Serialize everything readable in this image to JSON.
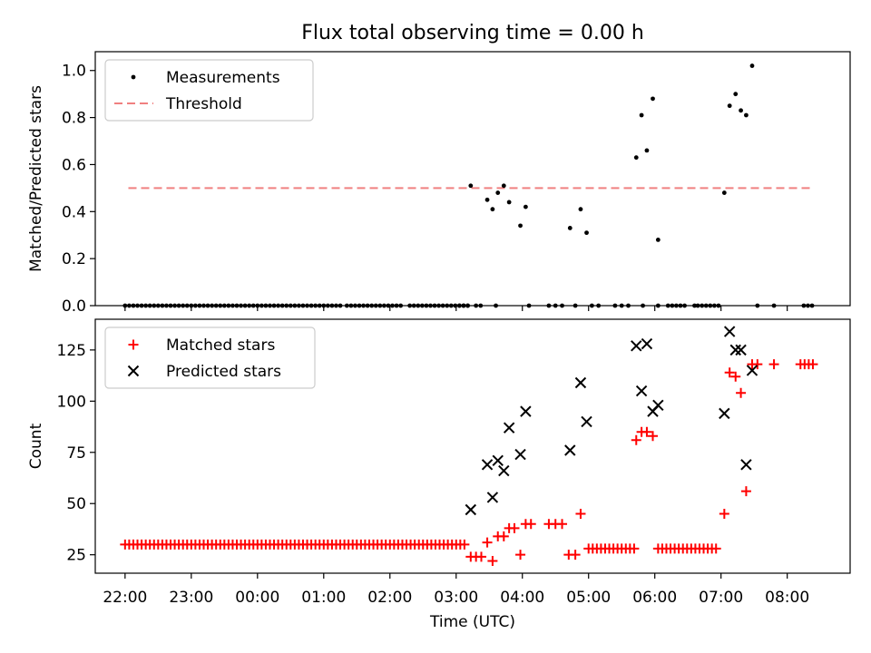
{
  "chart_data": {
    "title": "Flux total observing time = 0.00 h",
    "x_axis": {
      "label": "Time (UTC)",
      "domain_hours": [
        21.55,
        32.95
      ],
      "ticks": [
        {
          "h": 22,
          "label": "22:00"
        },
        {
          "h": 23,
          "label": "23:00"
        },
        {
          "h": 24,
          "label": "00:00"
        },
        {
          "h": 25,
          "label": "01:00"
        },
        {
          "h": 26,
          "label": "02:00"
        },
        {
          "h": 27,
          "label": "03:00"
        },
        {
          "h": 28,
          "label": "04:00"
        },
        {
          "h": 29,
          "label": "05:00"
        },
        {
          "h": 30,
          "label": "06:00"
        },
        {
          "h": 31,
          "label": "07:00"
        },
        {
          "h": 32,
          "label": "08:00"
        }
      ]
    },
    "panels": [
      {
        "type": "scatter",
        "ylabel": "Matched/Predicted stars",
        "ylim": [
          0,
          1.08
        ],
        "yticks": [
          {
            "v": 0.0,
            "label": "0.0"
          },
          {
            "v": 0.2,
            "label": "0.2"
          },
          {
            "v": 0.4,
            "label": "0.4"
          },
          {
            "v": 0.6,
            "label": "0.6"
          },
          {
            "v": 0.8,
            "label": "0.8"
          },
          {
            "v": 1.0,
            "label": "1.0"
          }
        ],
        "legend": {
          "position": "upper-left",
          "entries": [
            "Measurements",
            "Threshold"
          ]
        },
        "threshold": {
          "name": "Threshold",
          "value": 0.5,
          "x_range": [
            22.05,
            32.4
          ],
          "color": "#f08080"
        },
        "zero_runs": [
          {
            "start": 22.0,
            "end": 25.25,
            "step": 0.0625
          },
          {
            "start": 25.35,
            "end": 26.2,
            "step": 0.0625
          },
          {
            "start": 26.3,
            "end": 27.2,
            "step": 0.0625
          },
          {
            "start": 27.05,
            "end": 27.2,
            "step": 0.0625
          },
          {
            "start": 30.2,
            "end": 30.5,
            "step": 0.0625
          },
          {
            "start": 30.65,
            "end": 31.0,
            "step": 0.0625
          },
          {
            "start": 32.25,
            "end": 32.4,
            "step": 0.0625
          }
        ],
        "zeros_extra": [
          27.3,
          27.37,
          27.6,
          28.1,
          28.4,
          28.5,
          28.6,
          28.8,
          29.05,
          29.15,
          29.4,
          29.5,
          29.6,
          29.82,
          30.05,
          30.6,
          31.55,
          31.8
        ],
        "points": [
          {
            "x": 27.22,
            "y": 0.51
          },
          {
            "x": 27.47,
            "y": 0.45
          },
          {
            "x": 27.55,
            "y": 0.41
          },
          {
            "x": 27.63,
            "y": 0.48
          },
          {
            "x": 27.72,
            "y": 0.51
          },
          {
            "x": 27.8,
            "y": 0.44
          },
          {
            "x": 27.97,
            "y": 0.34
          },
          {
            "x": 28.05,
            "y": 0.42
          },
          {
            "x": 28.72,
            "y": 0.33
          },
          {
            "x": 28.88,
            "y": 0.41
          },
          {
            "x": 28.97,
            "y": 0.31
          },
          {
            "x": 29.72,
            "y": 0.63
          },
          {
            "x": 29.8,
            "y": 0.81
          },
          {
            "x": 29.88,
            "y": 0.66
          },
          {
            "x": 29.97,
            "y": 0.88
          },
          {
            "x": 30.05,
            "y": 0.28
          },
          {
            "x": 31.05,
            "y": 0.48
          },
          {
            "x": 31.13,
            "y": 0.85
          },
          {
            "x": 31.22,
            "y": 0.9
          },
          {
            "x": 31.3,
            "y": 0.83
          },
          {
            "x": 31.38,
            "y": 0.81
          },
          {
            "x": 31.47,
            "y": 1.02
          }
        ]
      },
      {
        "type": "scatter",
        "ylabel": "Count",
        "ylim": [
          16,
          140
        ],
        "yticks": [
          {
            "v": 25,
            "label": "25"
          },
          {
            "v": 50,
            "label": "50"
          },
          {
            "v": 75,
            "label": "75"
          },
          {
            "v": 100,
            "label": "100"
          },
          {
            "v": 125,
            "label": "125"
          }
        ],
        "legend": {
          "position": "upper-left",
          "entries": [
            "Matched stars",
            "Predicted stars"
          ]
        },
        "series": [
          {
            "name": "Matched stars",
            "marker": "+",
            "color": "#ff0000",
            "runs": [
              {
                "start": 22.0,
                "end": 27.15,
                "step": 0.0625,
                "y": 30
              },
              {
                "start": 29.0,
                "end": 29.7,
                "step": 0.0625,
                "y": 28
              },
              {
                "start": 30.05,
                "end": 30.95,
                "step": 0.0625,
                "y": 28
              },
              {
                "start": 32.2,
                "end": 32.4,
                "step": 0.0625,
                "y": 118
              }
            ],
            "points": [
              {
                "x": 27.22,
                "y": 24
              },
              {
                "x": 27.3,
                "y": 24
              },
              {
                "x": 27.38,
                "y": 24
              },
              {
                "x": 27.47,
                "y": 31
              },
              {
                "x": 27.55,
                "y": 22
              },
              {
                "x": 27.63,
                "y": 34
              },
              {
                "x": 27.72,
                "y": 34
              },
              {
                "x": 27.8,
                "y": 38
              },
              {
                "x": 27.88,
                "y": 38
              },
              {
                "x": 27.97,
                "y": 25
              },
              {
                "x": 28.05,
                "y": 40
              },
              {
                "x": 28.13,
                "y": 40
              },
              {
                "x": 28.4,
                "y": 40
              },
              {
                "x": 28.5,
                "y": 40
              },
              {
                "x": 28.6,
                "y": 40
              },
              {
                "x": 28.7,
                "y": 25
              },
              {
                "x": 28.8,
                "y": 25
              },
              {
                "x": 28.88,
                "y": 45
              },
              {
                "x": 29.72,
                "y": 81
              },
              {
                "x": 29.8,
                "y": 85
              },
              {
                "x": 29.88,
                "y": 85
              },
              {
                "x": 29.97,
                "y": 83
              },
              {
                "x": 31.05,
                "y": 45
              },
              {
                "x": 31.13,
                "y": 114
              },
              {
                "x": 31.22,
                "y": 112
              },
              {
                "x": 31.3,
                "y": 104
              },
              {
                "x": 31.38,
                "y": 56
              },
              {
                "x": 31.47,
                "y": 118
              },
              {
                "x": 31.55,
                "y": 118
              },
              {
                "x": 31.8,
                "y": 118
              }
            ]
          },
          {
            "name": "Predicted stars",
            "marker": "x",
            "color": "#000000",
            "points": [
              {
                "x": 27.22,
                "y": 47
              },
              {
                "x": 27.47,
                "y": 69
              },
              {
                "x": 27.55,
                "y": 53
              },
              {
                "x": 27.63,
                "y": 71
              },
              {
                "x": 27.72,
                "y": 66
              },
              {
                "x": 27.8,
                "y": 87
              },
              {
                "x": 27.97,
                "y": 74
              },
              {
                "x": 28.05,
                "y": 95
              },
              {
                "x": 28.72,
                "y": 76
              },
              {
                "x": 28.88,
                "y": 109
              },
              {
                "x": 28.97,
                "y": 90
              },
              {
                "x": 29.72,
                "y": 127
              },
              {
                "x": 29.8,
                "y": 105
              },
              {
                "x": 29.88,
                "y": 128
              },
              {
                "x": 29.97,
                "y": 95
              },
              {
                "x": 30.05,
                "y": 98
              },
              {
                "x": 31.05,
                "y": 94
              },
              {
                "x": 31.13,
                "y": 134
              },
              {
                "x": 31.22,
                "y": 125
              },
              {
                "x": 31.3,
                "y": 125
              },
              {
                "x": 31.38,
                "y": 69
              },
              {
                "x": 31.47,
                "y": 115
              }
            ]
          }
        ]
      }
    ]
  }
}
